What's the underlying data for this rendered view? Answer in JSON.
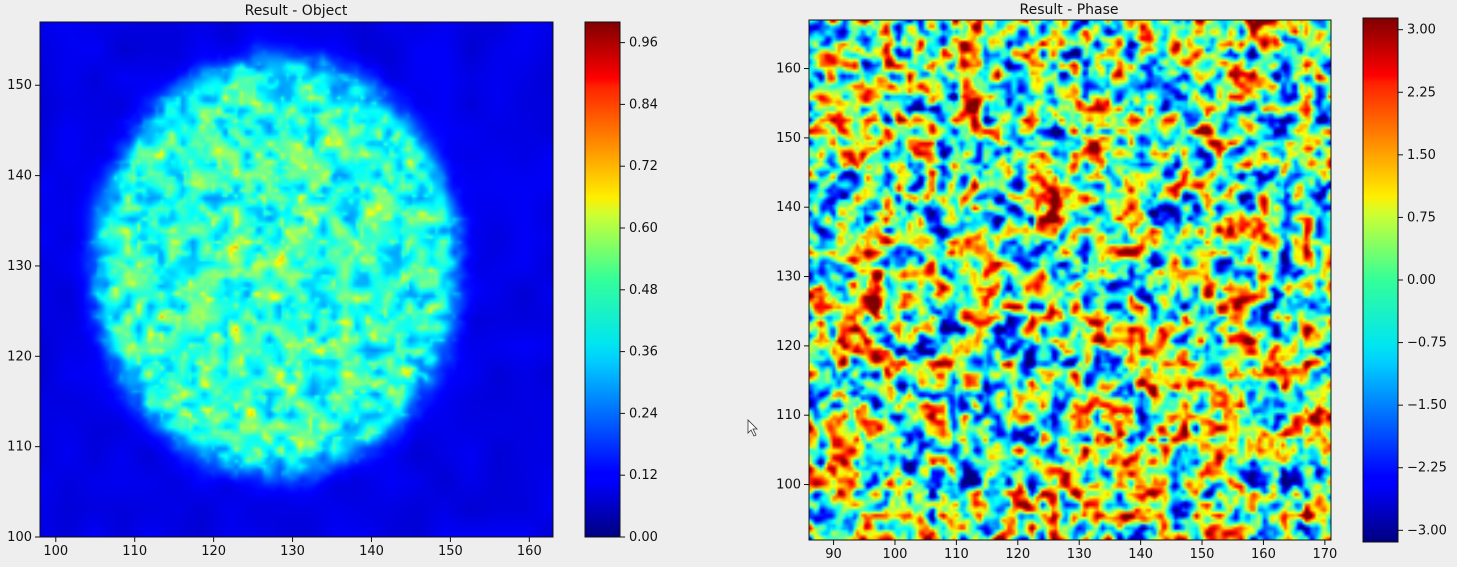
{
  "chart_data": [
    {
      "type": "heatmap",
      "title": "Result - Object",
      "xlabel": "",
      "ylabel": "",
      "xlim": [
        98,
        163
      ],
      "ylim": [
        100,
        157
      ],
      "xticks": [
        100,
        110,
        120,
        130,
        140,
        150,
        160
      ],
      "yticks": [
        100,
        110,
        120,
        130,
        140,
        150
      ],
      "colormap": "jet",
      "colorbar": {
        "range": [
          0.0,
          1.0
        ],
        "ticks": [
          "0.00",
          "0.12",
          "0.24",
          "0.36",
          "0.48",
          "0.60",
          "0.72",
          "0.84",
          "0.96"
        ],
        "tick_values": [
          0.0,
          0.12,
          0.24,
          0.36,
          0.48,
          0.6,
          0.72,
          0.84,
          0.96
        ]
      },
      "features": {
        "disk_center": [
          128,
          130
        ],
        "disk_radius": 23,
        "background_value": 0.1,
        "disk_mean_value": 0.4
      }
    },
    {
      "type": "heatmap",
      "title": "Result - Phase",
      "xlabel": "",
      "ylabel": "",
      "xlim": [
        86,
        171
      ],
      "ylim": [
        92,
        167
      ],
      "xticks": [
        90,
        100,
        110,
        120,
        130,
        140,
        150,
        160,
        170
      ],
      "yticks": [
        100,
        110,
        120,
        130,
        140,
        150,
        160
      ],
      "colormap": "jet",
      "colorbar": {
        "range": [
          -3.14,
          3.14
        ],
        "ticks": [
          "−3.00",
          "−2.25",
          "−1.50",
          "−0.75",
          "0.00",
          "0.75",
          "1.50",
          "2.25",
          "3.00"
        ],
        "tick_values": [
          -3.0,
          -2.25,
          -1.5,
          -0.75,
          0.0,
          0.75,
          1.5,
          2.25,
          3.0
        ]
      },
      "features": {
        "noise": "random phase across full field"
      }
    }
  ]
}
